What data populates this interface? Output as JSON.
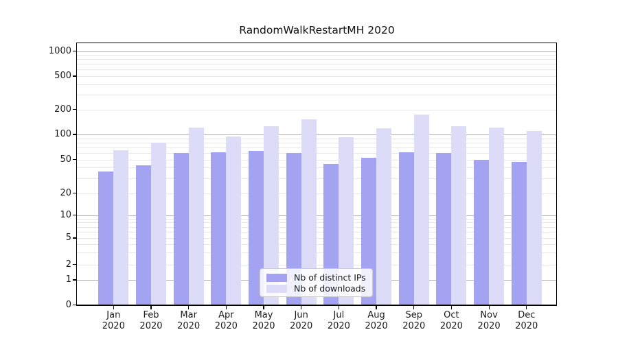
{
  "chart_data": {
    "type": "bar",
    "title": "RandomWalkRestartMH 2020",
    "categories": [
      "Jan 2020",
      "Feb 2020",
      "Mar 2020",
      "Apr 2020",
      "May 2020",
      "Jun 2020",
      "Jul 2020",
      "Aug 2020",
      "Sep 2020",
      "Oct 2020",
      "Nov 2020",
      "Dec 2020"
    ],
    "series": [
      {
        "name": "Nb of distinct IPs",
        "color": "#a3a3f2",
        "values": [
          36,
          43,
          60,
          61,
          63,
          60,
          44,
          52,
          61,
          60,
          50,
          47
        ]
      },
      {
        "name": "Nb of downloads",
        "color": "#dcdcf8",
        "values": [
          65,
          80,
          120,
          95,
          126,
          151,
          93,
          118,
          172,
          126,
          120,
          111
        ]
      }
    ],
    "yscale": "symlog",
    "yticks": [
      0,
      1,
      2,
      5,
      10,
      20,
      50,
      100,
      200,
      500,
      1000
    ],
    "ylim": [
      0,
      1250
    ],
    "xlabel": "",
    "ylabel": "",
    "grid": "both",
    "legend_position": "lower center"
  },
  "colors": {
    "major_gridline": "#b0b0b0",
    "minor_gridline": "#e7e7e7",
    "axis": "#000000",
    "text": "#1a1a1a",
    "legend_border": "#cccccc"
  }
}
